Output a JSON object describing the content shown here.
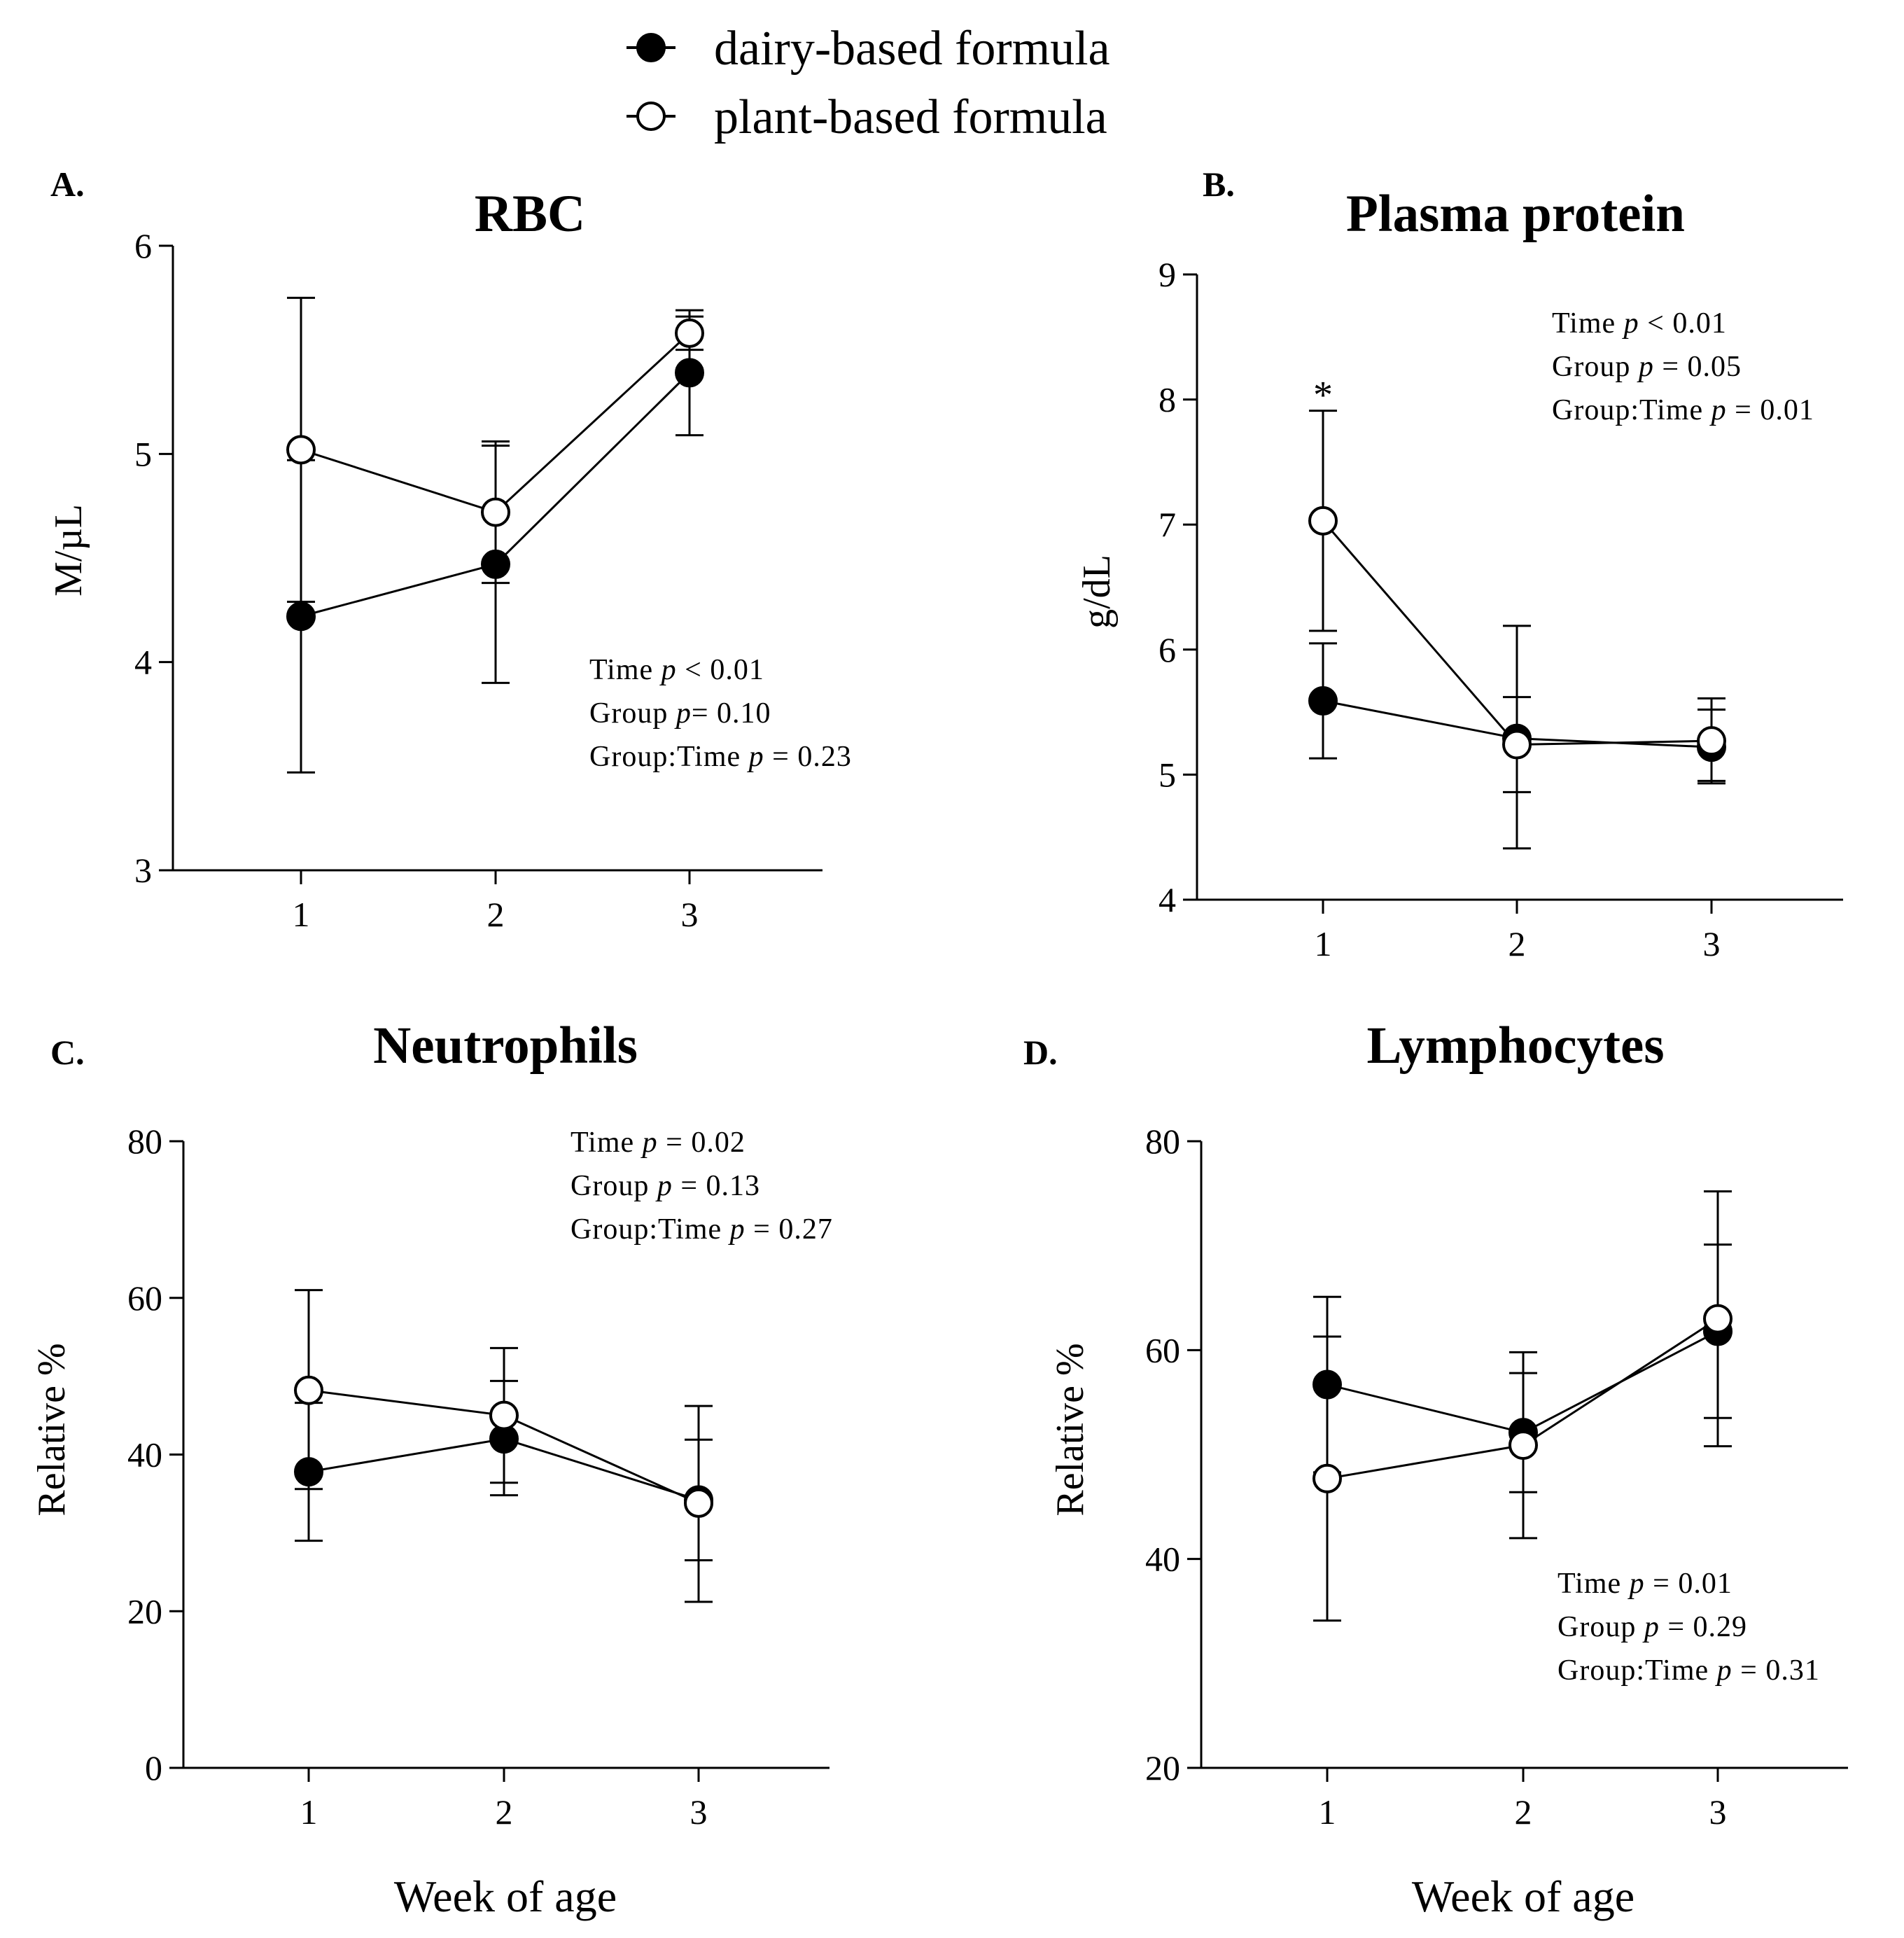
{
  "legend": {
    "dairy": "dairy-based formula",
    "plant": "plant-based formula"
  },
  "chart_data": [
    {
      "type": "line",
      "panel": "A.",
      "title": "RBC",
      "ylabel": "M/µL",
      "xlabel": "",
      "ylim": [
        3,
        6
      ],
      "yticks": [
        "3",
        "4",
        "5",
        "6"
      ],
      "ytick_values": [
        3,
        4,
        5,
        6
      ],
      "categories": [
        "1",
        "2",
        "3"
      ],
      "series": [
        {
          "name": "dairy-based formula",
          "values": [
            4.22,
            4.47,
            5.39
          ],
          "err_low": [
            3.47,
            3.9,
            5.09
          ],
          "err_high": [
            4.97,
            5.04,
            5.69
          ]
        },
        {
          "name": "plant-based formula",
          "values": [
            5.02,
            4.72,
            5.58
          ],
          "err_low": [
            4.29,
            4.38,
            5.5
          ],
          "err_high": [
            5.75,
            5.06,
            5.66
          ]
        }
      ],
      "stats": [
        {
          "label": "Time",
          "p": "p",
          "rest": " < 0.01"
        },
        {
          "label": "Group",
          "p": "p",
          "rest": "= 0.10"
        },
        {
          "label": "Group:Time",
          "p": "p",
          "rest": " = 0.23"
        }
      ],
      "annotations": []
    },
    {
      "type": "line",
      "panel": "B.",
      "title": "Plasma protein",
      "ylabel": "g/dL",
      "xlabel": "",
      "ylim": [
        4,
        9
      ],
      "yticks": [
        "4",
        "5",
        "6",
        "7",
        "8",
        "9"
      ],
      "ytick_values": [
        4,
        5,
        6,
        7,
        8,
        9
      ],
      "categories": [
        "1",
        "2",
        "3"
      ],
      "series": [
        {
          "name": "dairy-based formula",
          "values": [
            5.59,
            5.29,
            5.22
          ],
          "err_low": [
            5.13,
            4.86,
            4.93
          ],
          "err_high": [
            6.05,
            5.62,
            5.52
          ]
        },
        {
          "name": "plant-based formula",
          "values": [
            7.03,
            5.24,
            5.27
          ],
          "err_low": [
            6.15,
            4.41,
            4.95
          ],
          "err_high": [
            7.91,
            6.19,
            5.61
          ]
        }
      ],
      "stats": [
        {
          "label": "Time",
          "p": "p",
          "rest": " < 0.01"
        },
        {
          "label": "Group",
          "p": "p",
          "rest": " = 0.05"
        },
        {
          "label": "Group:Time",
          "p": "p",
          "rest": " = 0.01"
        }
      ],
      "annotations": [
        {
          "text": "*",
          "category": "1",
          "y": 8.1
        }
      ]
    },
    {
      "type": "line",
      "panel": "C.",
      "title": "Neutrophils",
      "ylabel": "Relative %",
      "xlabel": "Week of age",
      "ylim": [
        0,
        80
      ],
      "yticks": [
        "0",
        "20",
        "40",
        "60",
        "80"
      ],
      "ytick_values": [
        0,
        20,
        40,
        60,
        80
      ],
      "categories": [
        "1",
        "2",
        "3"
      ],
      "series": [
        {
          "name": "dairy-based formula",
          "values": [
            37.8,
            42.0,
            34.2
          ],
          "err_low": [
            29.0,
            34.8,
            26.5
          ],
          "err_high": [
            46.6,
            49.4,
            41.9
          ]
        },
        {
          "name": "plant-based formula",
          "values": [
            48.2,
            45.0,
            33.8
          ],
          "err_low": [
            35.6,
            36.4,
            21.2
          ],
          "err_high": [
            61.0,
            53.6,
            46.2
          ]
        }
      ],
      "stats": [
        {
          "label": "Time",
          "p": "p",
          "rest": " = 0.02"
        },
        {
          "label": "Group",
          "p": "p",
          "rest": " = 0.13"
        },
        {
          "label": "Group:Time",
          "p": "p",
          "rest": " = 0.27"
        }
      ],
      "annotations": []
    },
    {
      "type": "line",
      "panel": "D.",
      "title": "Lymphocytes",
      "ylabel": "Relative %",
      "xlabel": "Week of age",
      "ylim": [
        20,
        80
      ],
      "yticks": [
        "20",
        "40",
        "60",
        "80"
      ],
      "ytick_values": [
        20,
        40,
        60,
        80
      ],
      "categories": [
        "1",
        "2",
        "3"
      ],
      "series": [
        {
          "name": "dairy-based formula",
          "values": [
            56.7,
            52.1,
            61.8
          ],
          "err_low": [
            48.3,
            46.4,
            53.5
          ],
          "err_high": [
            65.1,
            57.8,
            70.1
          ]
        },
        {
          "name": "plant-based formula",
          "values": [
            47.7,
            50.9,
            63.0
          ],
          "err_low": [
            34.1,
            42.0,
            50.8
          ],
          "err_high": [
            61.3,
            59.8,
            75.2
          ]
        }
      ],
      "stats": [
        {
          "label": "Time",
          "p": "p",
          "rest": " = 0.01"
        },
        {
          "label": "Group",
          "p": "p",
          "rest": " = 0.29"
        },
        {
          "label": "Group:Time",
          "p": "p",
          "rest": " = 0.31"
        }
      ],
      "annotations": []
    }
  ]
}
